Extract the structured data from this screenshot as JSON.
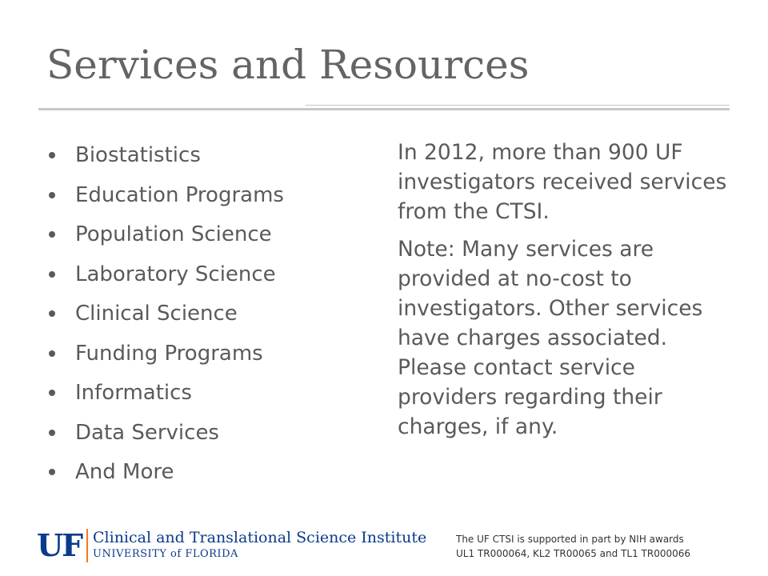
{
  "slide": {
    "title": "Services and Resources",
    "bullets": [
      "Biostatistics",
      "Education Programs",
      "Population Science",
      "Laboratory Science",
      "Clinical Science",
      "Funding Programs",
      "Informatics",
      "Data Services",
      "And More"
    ],
    "paragraph1": "In 2012, more than 900 UF investigators received services from the CTSI.",
    "paragraph2": "Note:  Many services are provided at no-cost to investigators.  Other services have charges associated. Please contact service providers regarding their charges, if any."
  },
  "footer": {
    "logo_mark": "UF",
    "institute_name": "Clinical and Translational Science Institute",
    "university_name": "UNIVERSITY of FLORIDA",
    "support_line1": "The UF CTSI is supported in part by NIH awards",
    "support_line2": "UL1 TR000064, KL2 TR00065 and TL1 TR000066"
  },
  "colors": {
    "text_gray": "#5a5a5a",
    "brand_blue": "#0a3a8c",
    "brand_orange": "#f47a20",
    "rule_gray": "#c8c8c8"
  }
}
